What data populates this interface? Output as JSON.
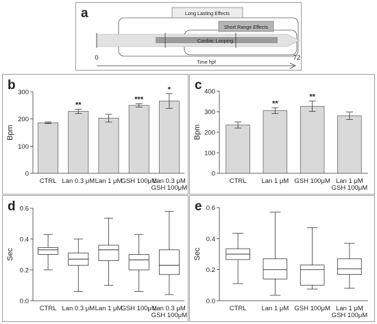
{
  "chart_data": [
    {
      "panel": "a",
      "type": "timeline",
      "bars": [
        "Long Lasting Effects",
        "Short Range Effects",
        "Cardiac Looping"
      ],
      "axis_start": "0",
      "axis_end": "72",
      "xlabel": "Time hpf"
    },
    {
      "panel": "b",
      "type": "bar",
      "ylabel": "Bpm",
      "ylim": [
        0,
        300
      ],
      "yticks": [
        0,
        100,
        200,
        300
      ],
      "categories": [
        [
          "CTRL"
        ],
        [
          "Lan 0.3 μM"
        ],
        [
          "Lan 1 μM"
        ],
        [
          "GSH 100μM"
        ],
        [
          "Lan 0.3 μM",
          "GSH 100μM"
        ]
      ],
      "values": [
        186,
        228,
        203,
        250,
        266
      ],
      "errors": [
        3,
        8,
        14,
        6,
        27
      ],
      "significance": [
        "",
        "**",
        "",
        "***",
        "*"
      ],
      "bar_color": "#d9d9d9"
    },
    {
      "panel": "c",
      "type": "bar",
      "ylabel": "Bpm",
      "ylim": [
        0,
        400
      ],
      "yticks": [
        0,
        100,
        200,
        300,
        400
      ],
      "categories": [
        [
          "CTRL"
        ],
        [
          "Lan 1 μM"
        ],
        [
          "GSH 100μM"
        ],
        [
          "Lan 1 μM",
          "GSH 100μM"
        ]
      ],
      "values": [
        235,
        305,
        326,
        280
      ],
      "errors": [
        15,
        14,
        25,
        18
      ],
      "significance": [
        "",
        "**",
        "**",
        ""
      ],
      "bar_color": "#d9d9d9"
    },
    {
      "panel": "d",
      "type": "box",
      "ylabel": "Sec",
      "ylim": [
        0,
        0.6
      ],
      "yticks": [
        "0.0",
        "0.2",
        "0.4",
        "0.6"
      ],
      "categories": [
        [
          "CTRL"
        ],
        [
          "Lan 0.3 μM"
        ],
        [
          "Lan 1 μM"
        ],
        [
          "GSH 100μM"
        ],
        [
          "Lan 0.3 μM",
          "GSH 100μM"
        ]
      ],
      "boxes": [
        {
          "min": 0.2,
          "q1": 0.3,
          "median": 0.33,
          "q3": 0.345,
          "max": 0.43
        },
        {
          "min": 0.06,
          "q1": 0.23,
          "median": 0.27,
          "q3": 0.31,
          "max": 0.4
        },
        {
          "min": 0.1,
          "q1": 0.26,
          "median": 0.33,
          "q3": 0.36,
          "max": 0.535
        },
        {
          "min": 0.06,
          "q1": 0.2,
          "median": 0.265,
          "q3": 0.3,
          "max": 0.43
        },
        {
          "min": 0.04,
          "q1": 0.17,
          "median": 0.23,
          "q3": 0.33,
          "max": 0.58
        }
      ]
    },
    {
      "panel": "e",
      "type": "box",
      "ylabel": "Sec",
      "ylim": [
        0,
        0.6
      ],
      "yticks": [
        "0.0",
        "0.2",
        "0.4",
        "0.6"
      ],
      "categories": [
        [
          "CTRL"
        ],
        [
          "Lan 1 μM"
        ],
        [
          "GSH 100μM"
        ],
        [
          "Lan 1 μM",
          "GSH 100μM"
        ]
      ],
      "boxes": [
        {
          "min": 0.11,
          "q1": 0.265,
          "median": 0.3,
          "q3": 0.335,
          "max": 0.435
        },
        {
          "min": 0.035,
          "q1": 0.14,
          "median": 0.2,
          "q3": 0.27,
          "max": 0.57
        },
        {
          "min": 0.075,
          "q1": 0.1,
          "median": 0.2,
          "q3": 0.23,
          "max": 0.47
        },
        {
          "min": 0.08,
          "q1": 0.17,
          "median": 0.205,
          "q3": 0.27,
          "max": 0.37
        }
      ]
    }
  ]
}
